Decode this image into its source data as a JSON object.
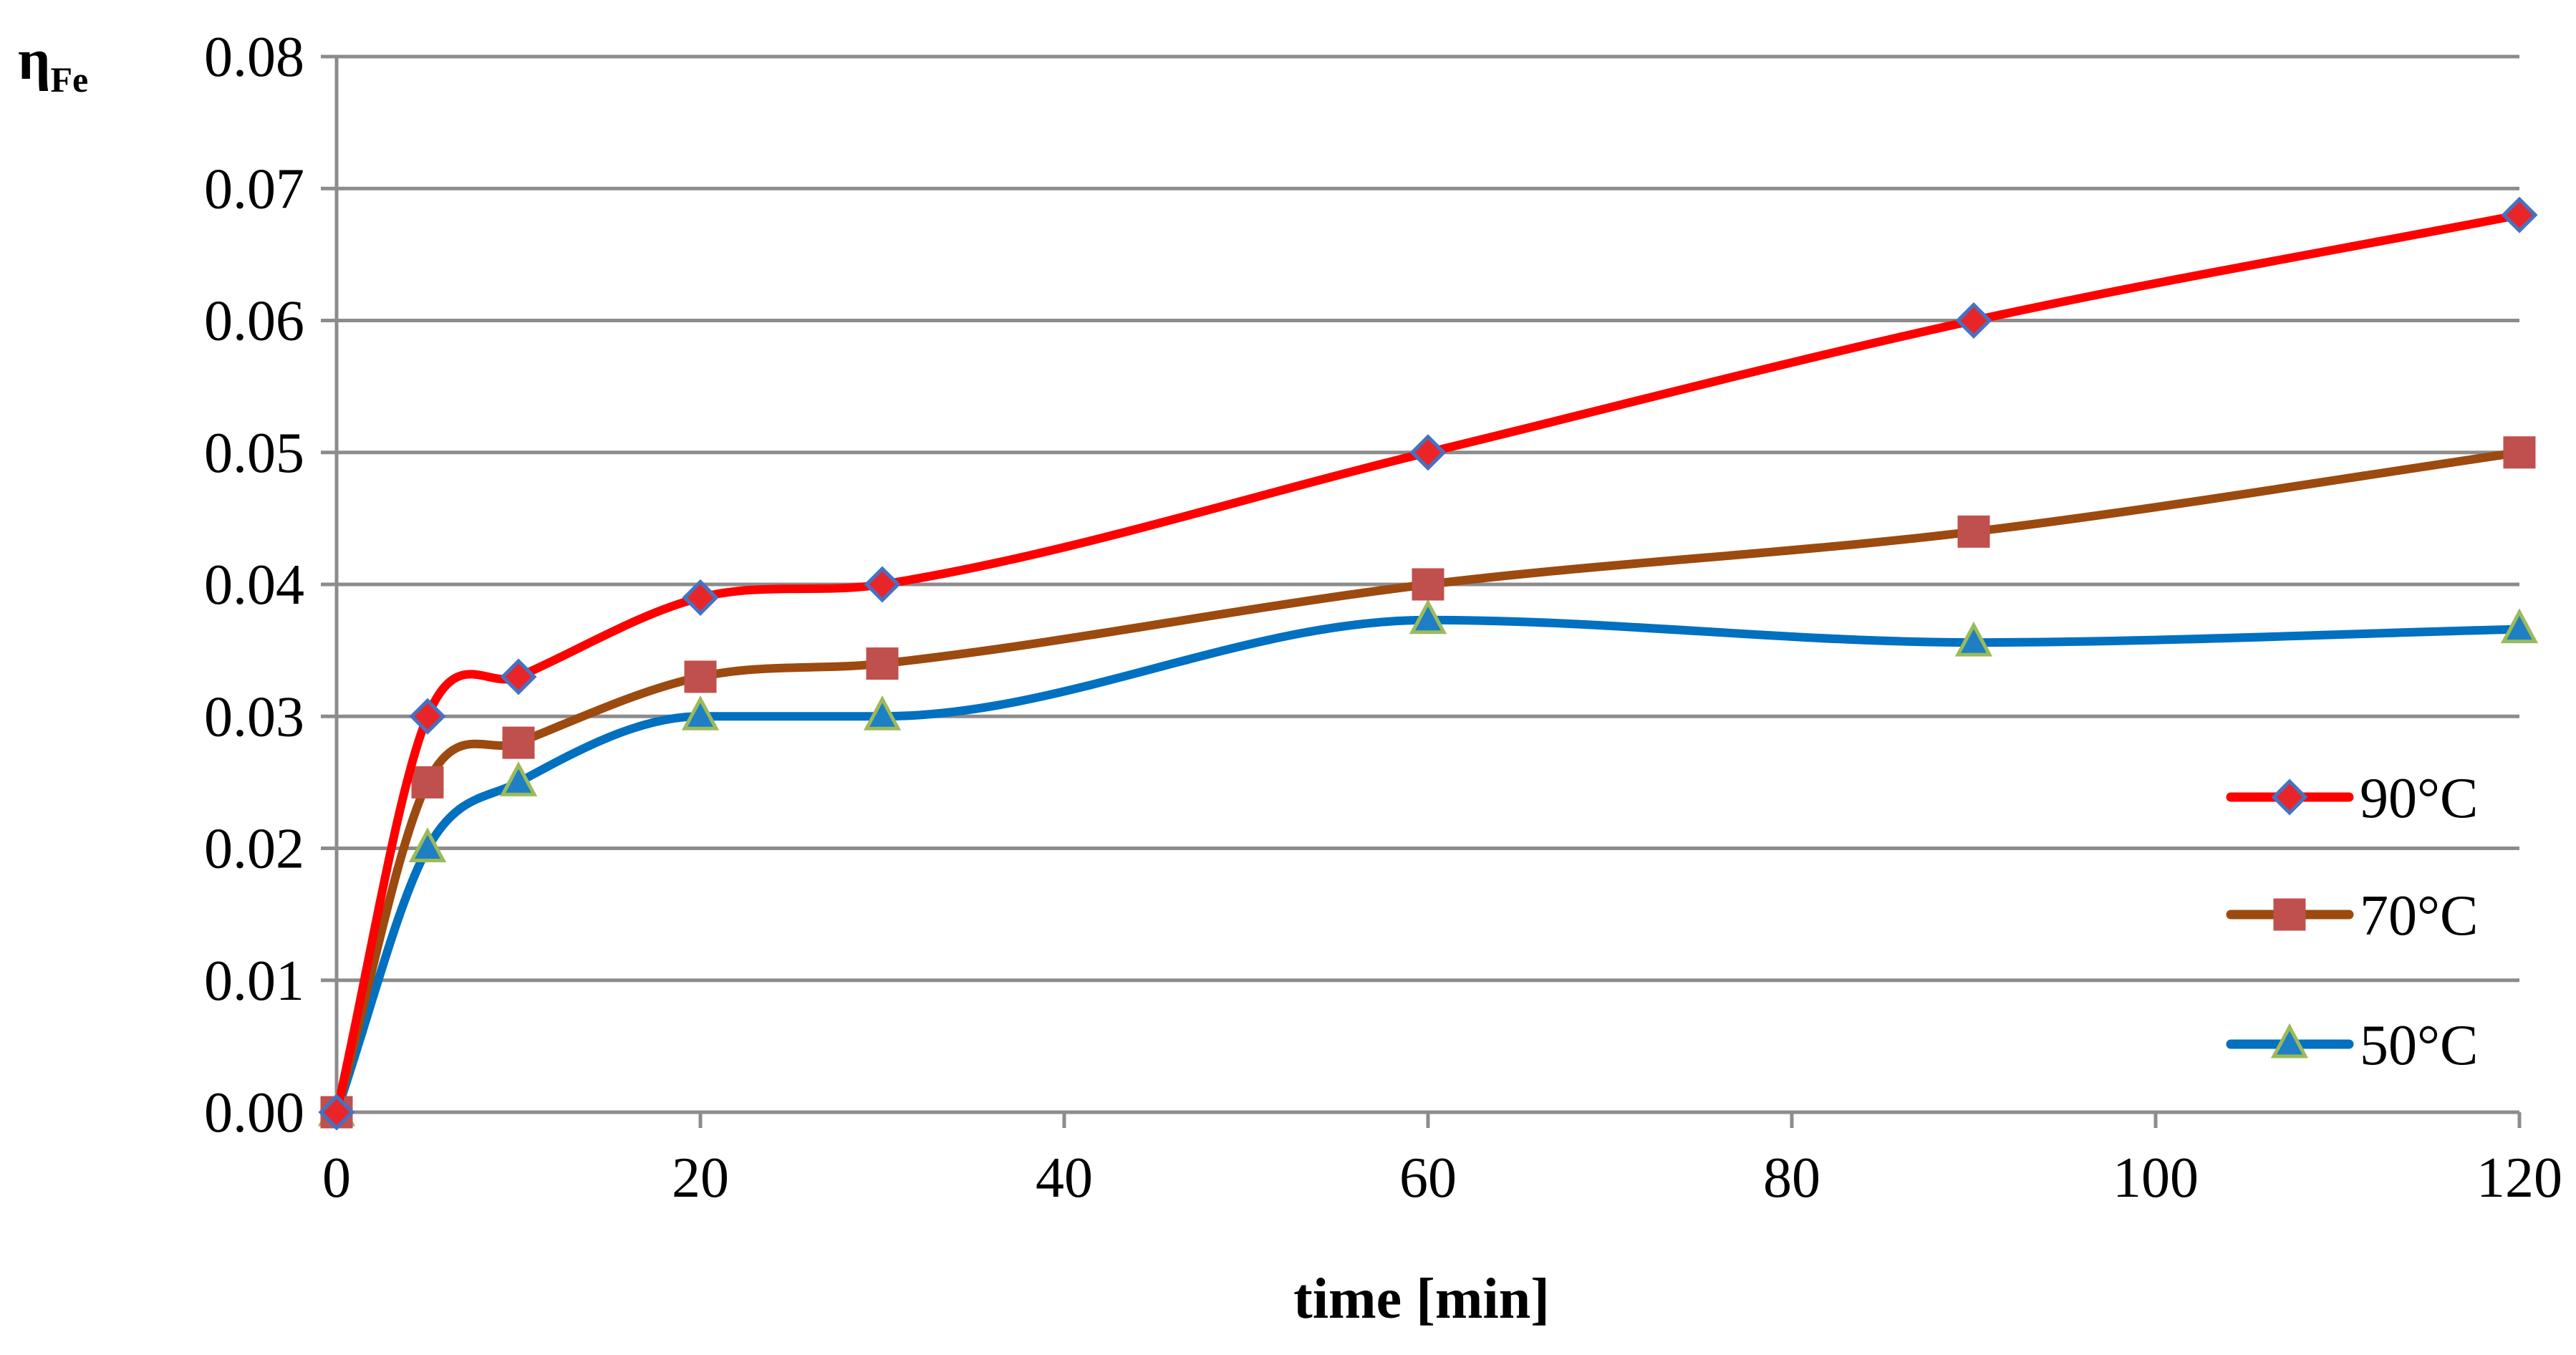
{
  "chart_data": {
    "type": "line",
    "title": "",
    "xlabel": "time [min]",
    "ylabel": "η",
    "ylabel_subscript": "Fe",
    "xlim": [
      0,
      120
    ],
    "ylim": [
      0,
      0.08
    ],
    "x_ticks": [
      0,
      20,
      40,
      60,
      80,
      100,
      120
    ],
    "y_ticks": [
      "0.00",
      "0.01",
      "0.02",
      "0.03",
      "0.04",
      "0.05",
      "0.06",
      "0.07",
      "0.08"
    ],
    "grid": "horizontal",
    "legend_position": "right",
    "series": [
      {
        "name": "90°C",
        "color": "#ff0000",
        "marker": "diamond",
        "marker_fill": "#e8262a",
        "marker_stroke": "#4472c4",
        "x": [
          0,
          5,
          10,
          20,
          30,
          60,
          90,
          120
        ],
        "y": [
          0.0,
          0.03,
          0.033,
          0.039,
          0.04,
          0.05,
          0.06,
          0.068
        ]
      },
      {
        "name": "70°C",
        "color": "#9c4a0f",
        "marker": "square",
        "marker_fill": "#c0504d",
        "marker_stroke": "#c0504d",
        "x": [
          0,
          5,
          10,
          20,
          30,
          60,
          90,
          120
        ],
        "y": [
          0.0,
          0.025,
          0.028,
          0.033,
          0.034,
          0.04,
          0.044,
          0.05
        ]
      },
      {
        "name": "50°C",
        "color": "#0070c0",
        "marker": "triangle",
        "marker_fill": "#1f7fc4",
        "marker_stroke": "#9bbb59",
        "x": [
          0,
          5,
          10,
          20,
          30,
          60,
          90,
          120
        ],
        "y": [
          0.0,
          0.02,
          0.025,
          0.03,
          0.03,
          0.0373,
          0.0356,
          0.0366
        ]
      }
    ]
  }
}
